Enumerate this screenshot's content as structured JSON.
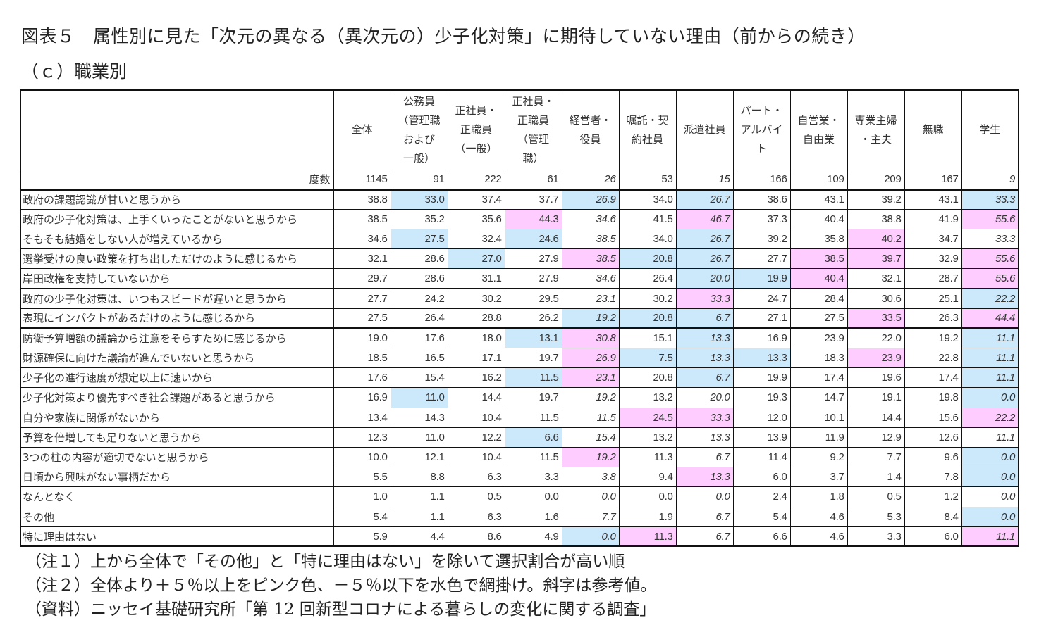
{
  "title": "図表５　属性別に見た「次元の異なる（異次元の）少子化対策」に期待していない理由（前からの続き）",
  "subtitle": "（ｃ）職業別",
  "colors": {
    "pink_highlight": "#ffccff",
    "blue_highlight": "#cce8fb",
    "border": "#111111"
  },
  "table": {
    "count_label": "度数",
    "columns": [
      {
        "label": "全体",
        "n": "1145",
        "italic": false
      },
      {
        "label": "公務員\n（管理職\nおよび\n一般）",
        "n": "91",
        "italic": false
      },
      {
        "label": "正社員・\n正職員\n（一般）",
        "n": "222",
        "italic": false
      },
      {
        "label": "正社員・\n正職員\n（管理\n職）",
        "n": "61",
        "italic": false
      },
      {
        "label": "経営者・\n役員",
        "n": "26",
        "italic": true
      },
      {
        "label": "嘱託・契\n約社員",
        "n": "53",
        "italic": false
      },
      {
        "label": "派遣社員",
        "n": "15",
        "italic": true
      },
      {
        "label": "パート・\nアルバイ\nト",
        "n": "166",
        "italic": false
      },
      {
        "label": "自営業・\n自由業",
        "n": "109",
        "italic": false
      },
      {
        "label": "専業主婦\n・主夫",
        "n": "209",
        "italic": false
      },
      {
        "label": "無職",
        "n": "167",
        "italic": false
      },
      {
        "label": "学生",
        "n": "9",
        "italic": true
      }
    ],
    "rows": [
      {
        "label": "政府の課題認識が甘いと思うから",
        "values": [
          "38.8",
          "33.0",
          "37.4",
          "37.7",
          "26.9",
          "34.0",
          "26.7",
          "38.6",
          "43.1",
          "39.2",
          "43.1",
          "33.3"
        ],
        "shade": [
          "",
          "b",
          "",
          "",
          "b",
          "",
          "b",
          "",
          "",
          "",
          "",
          "b"
        ]
      },
      {
        "label": "政府の少子化対策は、上手くいったことがないと思うから",
        "values": [
          "38.5",
          "35.2",
          "35.6",
          "44.3",
          "34.6",
          "41.5",
          "46.7",
          "37.3",
          "40.4",
          "38.8",
          "41.9",
          "55.6"
        ],
        "shade": [
          "",
          "",
          "",
          "p",
          "",
          "",
          "p",
          "",
          "",
          "",
          "",
          "p"
        ]
      },
      {
        "label": "そもそも結婚をしない人が増えているから",
        "values": [
          "34.6",
          "27.5",
          "32.4",
          "24.6",
          "38.5",
          "34.0",
          "26.7",
          "39.2",
          "35.8",
          "40.2",
          "34.7",
          "33.3"
        ],
        "shade": [
          "",
          "b",
          "",
          "b",
          "",
          "",
          "b",
          "",
          "",
          "p",
          "",
          ""
        ]
      },
      {
        "label": "選挙受けの良い政策を打ち出しただけのように感じるから",
        "values": [
          "32.1",
          "28.6",
          "27.0",
          "27.9",
          "38.5",
          "20.8",
          "26.7",
          "27.7",
          "38.5",
          "39.7",
          "32.9",
          "55.6"
        ],
        "shade": [
          "",
          "",
          "b",
          "",
          "p",
          "b",
          "b",
          "",
          "p",
          "p",
          "",
          "p"
        ]
      },
      {
        "label": "岸田政権を支持していないから",
        "values": [
          "29.7",
          "28.6",
          "31.1",
          "27.9",
          "34.6",
          "26.4",
          "20.0",
          "19.9",
          "40.4",
          "32.1",
          "28.7",
          "55.6"
        ],
        "shade": [
          "",
          "",
          "",
          "",
          "",
          "",
          "b",
          "b",
          "p",
          "",
          "",
          "p"
        ]
      },
      {
        "label": "政府の少子化対策は、いつもスピードが遅いと思うから",
        "values": [
          "27.7",
          "24.2",
          "30.2",
          "29.5",
          "23.1",
          "30.2",
          "33.3",
          "24.7",
          "28.4",
          "30.6",
          "25.1",
          "22.2"
        ],
        "shade": [
          "",
          "",
          "",
          "",
          "",
          "",
          "p",
          "",
          "",
          "",
          "",
          "b"
        ]
      },
      {
        "label": "表現にインパクトがあるだけのように感じるから",
        "values": [
          "27.5",
          "26.4",
          "28.8",
          "26.2",
          "19.2",
          "20.8",
          "6.7",
          "27.1",
          "27.5",
          "33.5",
          "26.3",
          "44.4"
        ],
        "shade": [
          "",
          "",
          "",
          "",
          "b",
          "b",
          "b",
          "",
          "",
          "p",
          "",
          "p"
        ]
      },
      {
        "label": "防衛予算増額の議論から注意をそらすために感じるから",
        "values": [
          "19.0",
          "17.6",
          "18.0",
          "13.1",
          "30.8",
          "15.1",
          "13.3",
          "16.9",
          "23.9",
          "22.0",
          "19.2",
          "11.1"
        ],
        "shade": [
          "",
          "",
          "",
          "b",
          "p",
          "",
          "b",
          "",
          "",
          "",
          "",
          "b"
        ]
      },
      {
        "label": "財源確保に向けた議論が進んでいないと思うから",
        "values": [
          "18.5",
          "16.5",
          "17.1",
          "19.7",
          "26.9",
          "7.5",
          "13.3",
          "13.3",
          "18.3",
          "23.9",
          "22.8",
          "11.1"
        ],
        "shade": [
          "",
          "",
          "",
          "",
          "p",
          "b",
          "b",
          "b",
          "",
          "p",
          "",
          "b"
        ]
      },
      {
        "label": "少子化の進行速度が想定以上に速いから",
        "values": [
          "17.6",
          "15.4",
          "16.2",
          "11.5",
          "23.1",
          "20.8",
          "6.7",
          "19.9",
          "17.4",
          "19.6",
          "17.4",
          "11.1"
        ],
        "shade": [
          "",
          "",
          "",
          "b",
          "p",
          "",
          "b",
          "",
          "",
          "",
          "",
          "b"
        ]
      },
      {
        "label": "少子化対策より優先すべき社会課題があると思うから",
        "values": [
          "16.9",
          "11.0",
          "14.4",
          "19.7",
          "19.2",
          "13.2",
          "20.0",
          "19.3",
          "14.7",
          "19.1",
          "19.8",
          "0.0"
        ],
        "shade": [
          "",
          "b",
          "",
          "",
          "",
          "",
          "",
          "",
          "",
          "",
          "",
          "b"
        ]
      },
      {
        "label": "自分や家族に関係がないから",
        "values": [
          "13.4",
          "14.3",
          "10.4",
          "11.5",
          "11.5",
          "24.5",
          "33.3",
          "12.0",
          "10.1",
          "14.4",
          "15.6",
          "22.2"
        ],
        "shade": [
          "",
          "",
          "",
          "",
          "",
          "p",
          "p",
          "",
          "",
          "",
          "",
          "p"
        ]
      },
      {
        "label": "予算を倍増しても足りないと思うから",
        "values": [
          "12.3",
          "11.0",
          "12.2",
          "6.6",
          "15.4",
          "13.2",
          "13.3",
          "13.9",
          "11.9",
          "12.9",
          "12.6",
          "11.1"
        ],
        "shade": [
          "",
          "",
          "",
          "b",
          "",
          "",
          "",
          "",
          "",
          "",
          "",
          ""
        ]
      },
      {
        "label": "3つの柱の内容が適切でないと思うから",
        "values": [
          "10.0",
          "12.1",
          "10.4",
          "11.5",
          "19.2",
          "11.3",
          "6.7",
          "11.4",
          "9.2",
          "7.7",
          "9.6",
          "0.0"
        ],
        "shade": [
          "",
          "",
          "",
          "",
          "p",
          "",
          "",
          "",
          "",
          "",
          "",
          "b"
        ]
      },
      {
        "label": "日頃から興味がない事柄だから",
        "values": [
          "5.5",
          "8.8",
          "6.3",
          "3.3",
          "3.8",
          "9.4",
          "13.3",
          "6.0",
          "3.7",
          "1.4",
          "7.8",
          "0.0"
        ],
        "shade": [
          "",
          "",
          "",
          "",
          "",
          "",
          "p",
          "",
          "",
          "",
          "",
          "b"
        ]
      },
      {
        "label": "なんとなく",
        "values": [
          "1.0",
          "1.1",
          "0.5",
          "0.0",
          "0.0",
          "0.0",
          "0.0",
          "2.4",
          "1.8",
          "0.5",
          "1.2",
          "0.0"
        ],
        "shade": [
          "",
          "",
          "",
          "",
          "",
          "",
          "",
          "",
          "",
          "",
          "",
          ""
        ]
      },
      {
        "label": "その他",
        "values": [
          "5.4",
          "1.1",
          "6.3",
          "1.6",
          "7.7",
          "1.9",
          "6.7",
          "5.4",
          "4.6",
          "5.3",
          "8.4",
          "0.0"
        ],
        "shade": [
          "",
          "",
          "",
          "",
          "",
          "",
          "",
          "",
          "",
          "",
          "",
          "b"
        ]
      },
      {
        "label": "特に理由はない",
        "values": [
          "5.9",
          "4.4",
          "8.6",
          "4.9",
          "0.0",
          "11.3",
          "6.7",
          "6.6",
          "4.6",
          "3.3",
          "6.0",
          "11.1"
        ],
        "shade": [
          "",
          "",
          "",
          "",
          "b",
          "p",
          "",
          "",
          "",
          "",
          "",
          "p"
        ]
      }
    ]
  },
  "notes": [
    "（注１）上から全体で「その他」と「特に理由はない」を除いて選択割合が高い順",
    "（注２）全体より＋５％以上をピンク色、－５％以下を水色で網掛け。斜字は参考値。",
    "（資料）ニッセイ基礎研究所「第 12 回新型コロナによる暮らしの変化に関する調査」"
  ]
}
